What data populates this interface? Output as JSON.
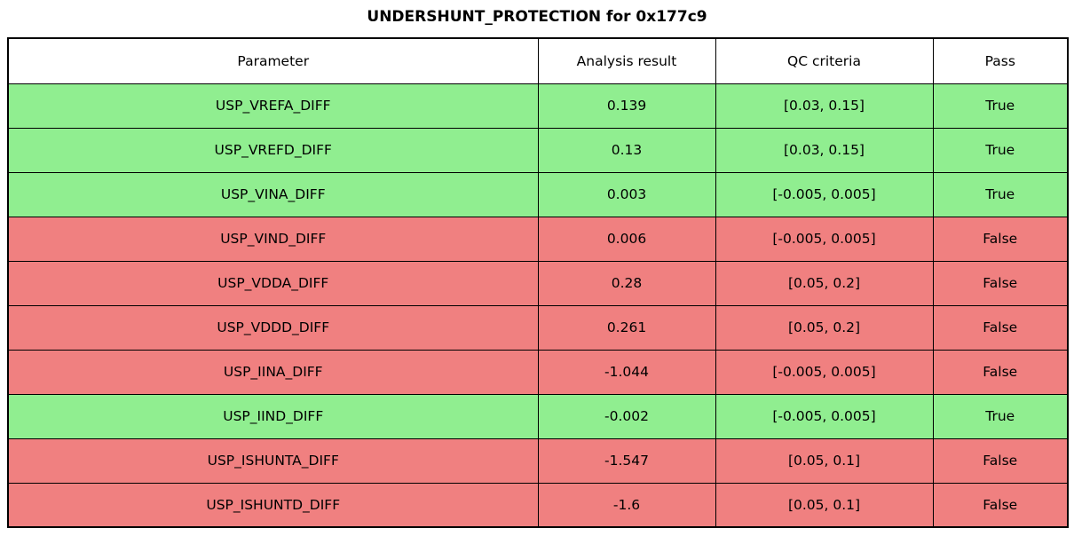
{
  "title": "UNDERSHUNT_PROTECTION for 0x177c9",
  "colors": {
    "pass_green": "#90EE90",
    "fail_red": "#F08080",
    "border": "#000000",
    "header_bg": "#FFFFFF",
    "text": "#000000"
  },
  "chart_data": {
    "type": "table",
    "title": "UNDERSHUNT_PROTECTION for 0x177c9",
    "columns": [
      "Parameter",
      "Analysis result",
      "QC criteria",
      "Pass"
    ],
    "rows": [
      {
        "parameter": "USP_VREFA_DIFF",
        "analysis_result": "0.139",
        "qc_criteria": "[0.03, 0.15]",
        "pass": "True"
      },
      {
        "parameter": "USP_VREFD_DIFF",
        "analysis_result": "0.13",
        "qc_criteria": "[0.03, 0.15]",
        "pass": "True"
      },
      {
        "parameter": "USP_VINA_DIFF",
        "analysis_result": "0.003",
        "qc_criteria": "[-0.005, 0.005]",
        "pass": "True"
      },
      {
        "parameter": "USP_VIND_DIFF",
        "analysis_result": "0.006",
        "qc_criteria": "[-0.005, 0.005]",
        "pass": "False"
      },
      {
        "parameter": "USP_VDDA_DIFF",
        "analysis_result": "0.28",
        "qc_criteria": "[0.05, 0.2]",
        "pass": "False"
      },
      {
        "parameter": "USP_VDDD_DIFF",
        "analysis_result": "0.261",
        "qc_criteria": "[0.05, 0.2]",
        "pass": "False"
      },
      {
        "parameter": "USP_IINA_DIFF",
        "analysis_result": "-1.044",
        "qc_criteria": "[-0.005, 0.005]",
        "pass": "False"
      },
      {
        "parameter": "USP_IIND_DIFF",
        "analysis_result": "-0.002",
        "qc_criteria": "[-0.005, 0.005]",
        "pass": "True"
      },
      {
        "parameter": "USP_ISHUNTA_DIFF",
        "analysis_result": "-1.547",
        "qc_criteria": "[0.05, 0.1]",
        "pass": "False"
      },
      {
        "parameter": "USP_ISHUNTD_DIFF",
        "analysis_result": "-1.6",
        "qc_criteria": "[0.05, 0.1]",
        "pass": "False"
      }
    ]
  }
}
